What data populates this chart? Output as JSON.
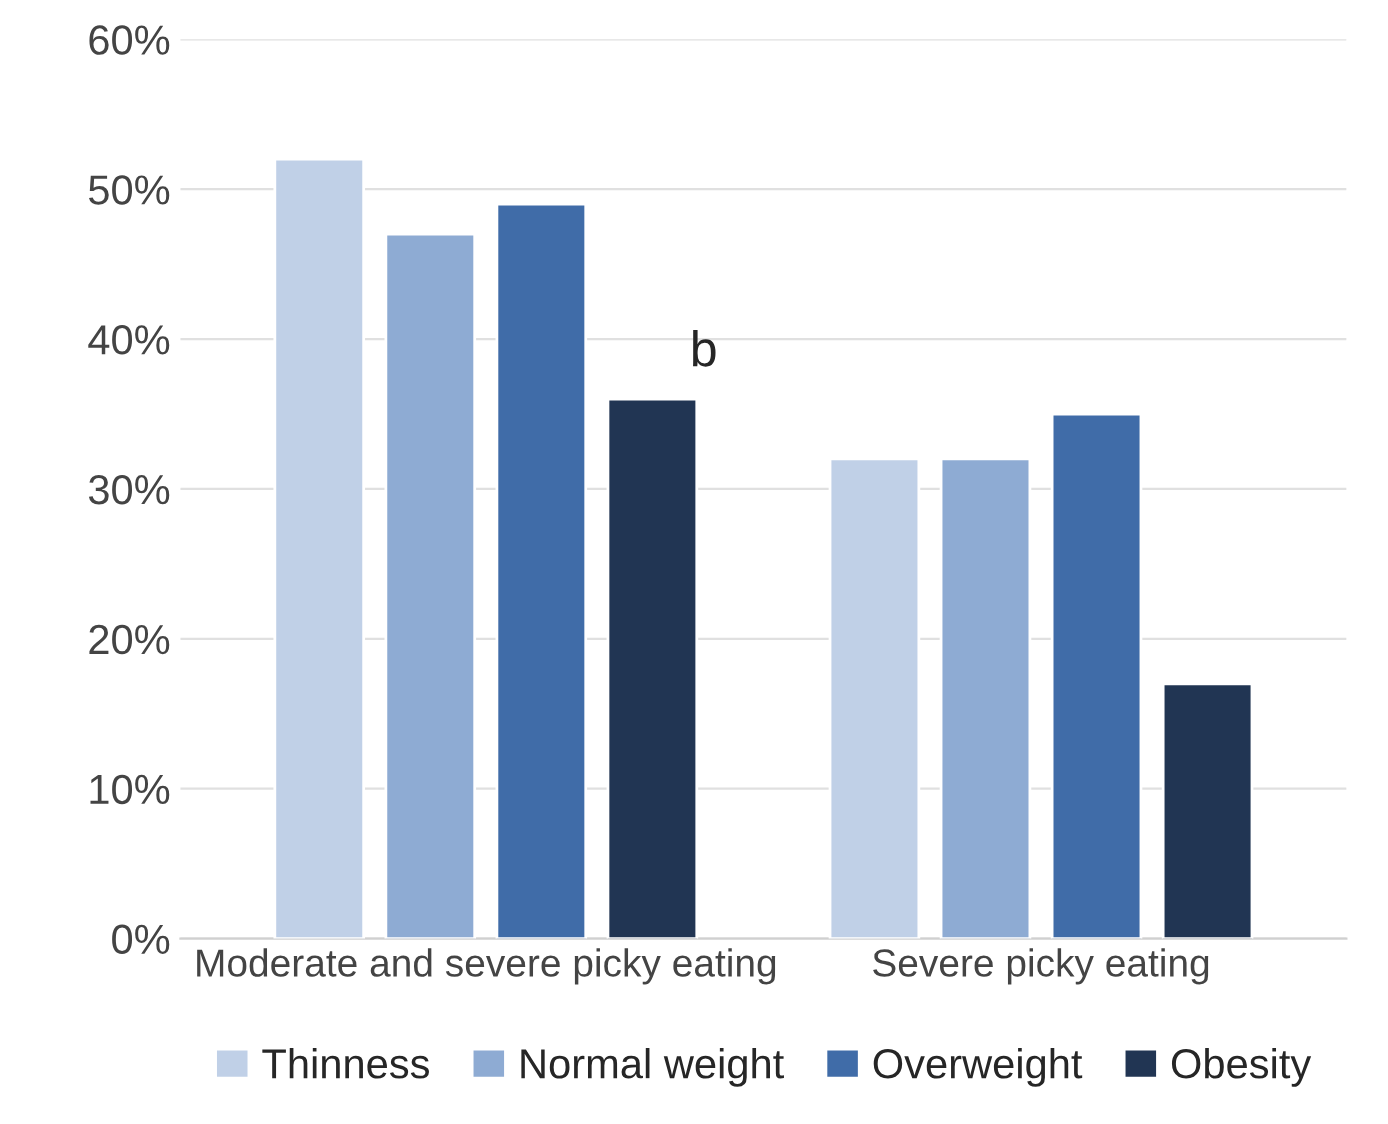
{
  "chart_data": {
    "type": "bar",
    "categories": [
      "Moderate and severe picky eating",
      "Severe picky eating"
    ],
    "series": [
      {
        "name": "Thinness",
        "color": "#c0d0e7",
        "values": [
          52,
          32
        ]
      },
      {
        "name": "Normal weight",
        "color": "#8eabd3",
        "values": [
          47,
          32
        ]
      },
      {
        "name": "Overweight",
        "color": "#406ca8",
        "values": [
          49,
          35
        ]
      },
      {
        "name": "Obesity",
        "color": "#213553",
        "values": [
          36,
          17
        ]
      }
    ],
    "ylim": [
      0,
      60
    ],
    "yticks": [
      {
        "value": 0,
        "label": "0%"
      },
      {
        "value": 10,
        "label": "10%"
      },
      {
        "value": 20,
        "label": "20%"
      },
      {
        "value": 30,
        "label": "30%"
      },
      {
        "value": 40,
        "label": "40%"
      },
      {
        "value": 50,
        "label": "50%"
      },
      {
        "value": 60,
        "label": "60%"
      }
    ],
    "grid": "y",
    "legend": "bottom",
    "annotations": [
      "b"
    ]
  }
}
